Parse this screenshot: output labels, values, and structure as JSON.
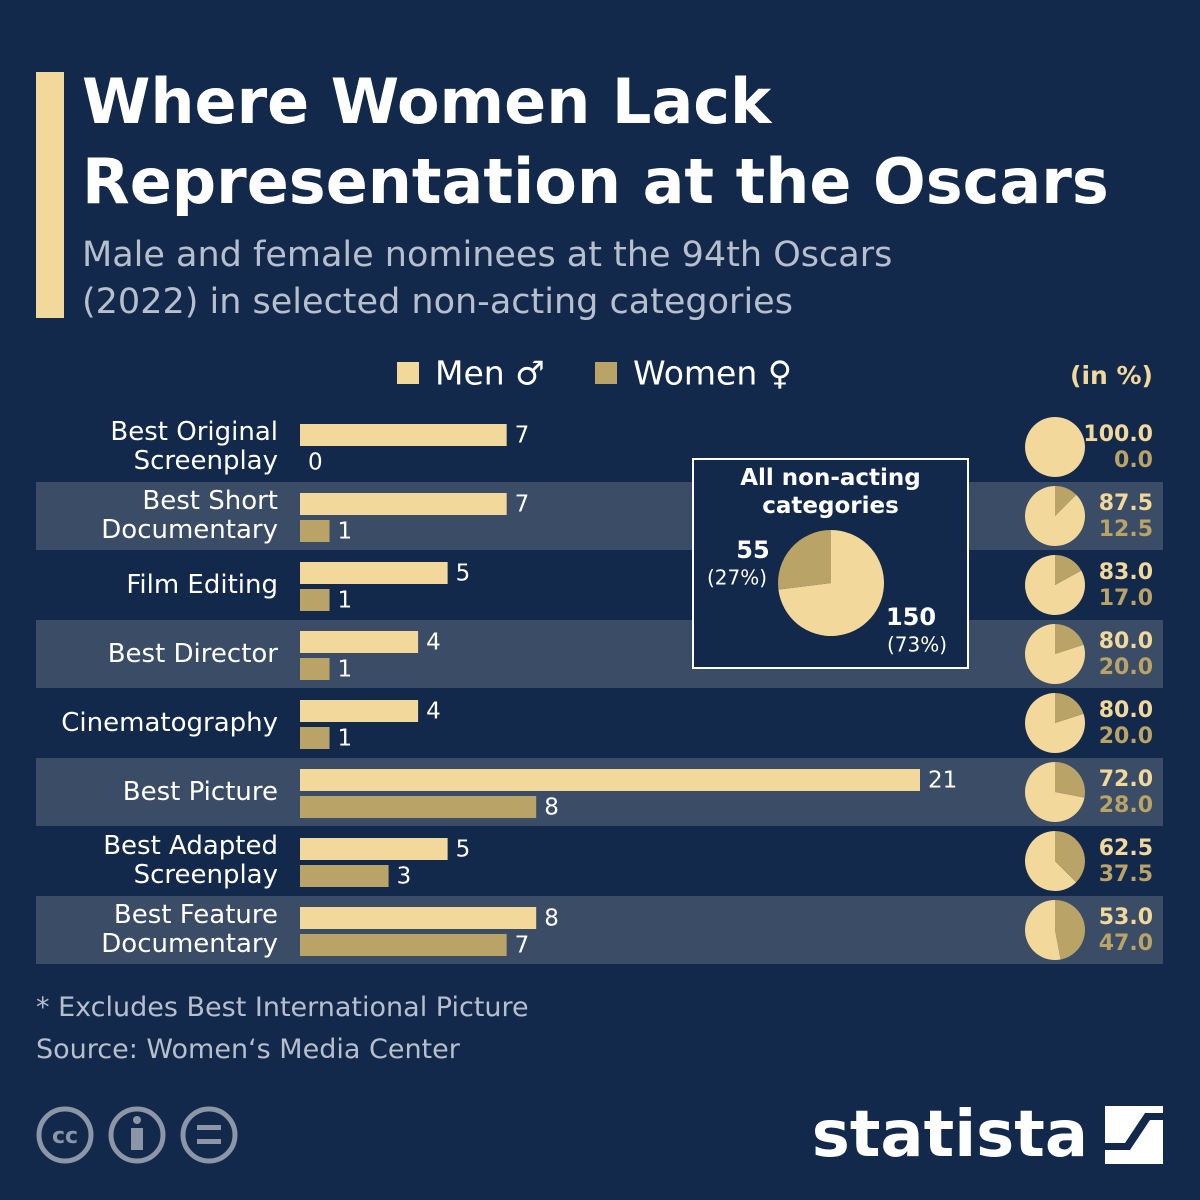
{
  "chart_data": {
    "type": "bar",
    "title": "Where Women Lack Representation at the Oscars",
    "subtitle": "Male and female nominees at the 94th Oscars (2022) in selected non-acting categories",
    "categories": [
      "Best Original Screenplay",
      "Best Short Documentary",
      "Film Editing",
      "Best Director",
      "Cinematography",
      "Best Picture",
      "Best Adapted Screenplay",
      "Best Feature Documentary"
    ],
    "series": [
      {
        "name": "Men ♂",
        "color": "#f2d99b",
        "values": [
          7,
          7,
          5,
          4,
          4,
          21,
          5,
          8
        ],
        "shares": [
          100,
          87.5,
          83,
          80,
          80,
          72,
          62.5,
          53
        ],
        "share_labels": [
          "100.0",
          "87.5",
          "83.0",
          "80.0",
          "80.0",
          "72.0",
          "62.5",
          "53.0"
        ]
      },
      {
        "name": "Women ♀",
        "color": "#b9a366",
        "values": [
          0,
          1,
          1,
          1,
          1,
          8,
          3,
          7
        ],
        "shares": [
          0,
          12.5,
          17,
          20,
          20,
          28,
          37.5,
          47
        ],
        "share_labels": [
          "0.0",
          "12.5",
          "17.0",
          "20.0",
          "20.0",
          "28.0",
          "37.5",
          "47.0"
        ]
      }
    ],
    "share_unit": "(in %)",
    "inset": {
      "title": "All non-acting categories",
      "values": [
        150,
        55
      ],
      "percents": [
        73,
        27
      ],
      "percent_labels": [
        "(73%)",
        "(27%)"
      ]
    },
    "footnote": "* Excludes Best International Picture",
    "source": "Source: Women‘s Media Center",
    "brand": "statista"
  }
}
